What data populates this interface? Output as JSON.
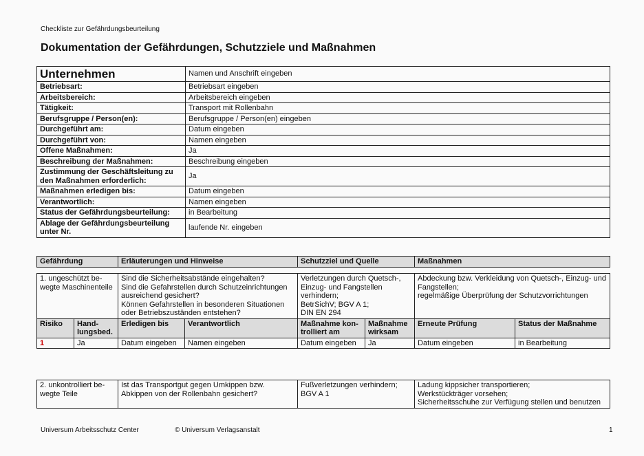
{
  "header": {
    "subtitle": "Checkliste zur Gefährdungsbeurteilung",
    "title": "Dokumentation der Gefährdungen, Schutzziele und Maßnahmen"
  },
  "company": {
    "label": "Unternehmen",
    "value": "Namen und Anschrift eingeben",
    "rows": [
      {
        "label": "Betriebsart:",
        "value": "Betriebsart eingeben"
      },
      {
        "label": "Arbeitsbereich:",
        "value": "Arbeitsbereich eingeben"
      },
      {
        "label": "Tätigkeit:",
        "value": "Transport mit Rollenbahn"
      },
      {
        "label": "Berufsgruppe / Person(en):",
        "value": "Berufsgruppe / Person(en) eingeben"
      },
      {
        "label": "Durchgeführt am:",
        "value": "Datum eingeben"
      },
      {
        "label": "Durchgeführt von:",
        "value": "Namen eingeben"
      },
      {
        "label": "Offene Maßnahmen:",
        "value": "Ja"
      },
      {
        "label": "Beschreibung der Maßnahmen:",
        "value": "Beschreibung eingeben"
      },
      {
        "label": "Zustimmung der Geschäftsleitung zu den Maßnahmen erforderlich:",
        "value": "Ja"
      },
      {
        "label": "Maßnahmen erledigen bis:",
        "value": "Datum eingeben"
      },
      {
        "label": "Verantwortlich:",
        "value": "Namen eingeben"
      },
      {
        "label": "Status der Gefährdungsbeurteilung:",
        "value": "in Bearbeitung"
      },
      {
        "label": "Ablage der Gefährdungsbeurteilung unter Nr.",
        "value": "laufende Nr. eingeben"
      }
    ]
  },
  "hazard_header": [
    "Gefährdung",
    "Erläuterungen und Hinweise",
    "Schutzziel und Quelle",
    "Maßnahmen"
  ],
  "hazard1": {
    "hazard": "1. ungeschützt be-\nwegte Maschinenteile",
    "notes": "Sind die Sicherheitsabstände eingehalten?\nSind die Gefahrstellen durch Schutzeinrichtungen ausreichend gesichert?\nKönnen Gefahrstellen in besonderen Situationen oder Betriebszuständen entstehen?",
    "goal": "Verletzungen durch Quetsch-, Einzug- und Fangstellen verhindern;\nBetrSichV; BGV A 1;\nDIN EN 294",
    "measures": "Abdeckung bzw. Verkleidung von Quetsch-, Einzug- und Fangstellen;\nregelmäßige Überprüfung der Schutzvorrichtungen",
    "sub_headers": [
      "Risiko",
      "Hand-\nlungsbed.",
      "Erledigen bis",
      "Verantwortlich",
      "Maßnahme kon-\ntrolliert am",
      "Maßnahme\nwirksam",
      "Erneute Prüfung",
      "Status der Maßnahme"
    ],
    "sub_values": [
      "1",
      "Ja",
      "Datum eingeben",
      "Namen eingeben",
      "Datum eingeben",
      "Ja",
      "Datum eingeben",
      "in Bearbeitung"
    ]
  },
  "hazard2": {
    "hazard": "2. unkontrolliert be-\nwegte Teile",
    "notes": "Ist das Transportgut gegen Umkippen bzw.\nAbkippen von der Rollenbahn gesichert?",
    "goal": "Fußverletzungen verhindern;\nBGV A 1",
    "measures": "Ladung kippsicher transportieren;\nWerkstückträger vorsehen;\nSicherheitsschuhe zur Verfügung stellen und benutzen"
  },
  "footer": {
    "left": "Universum Arbeitsschutz Center",
    "center": "© Universum Verlagsanstalt",
    "page": "1"
  }
}
